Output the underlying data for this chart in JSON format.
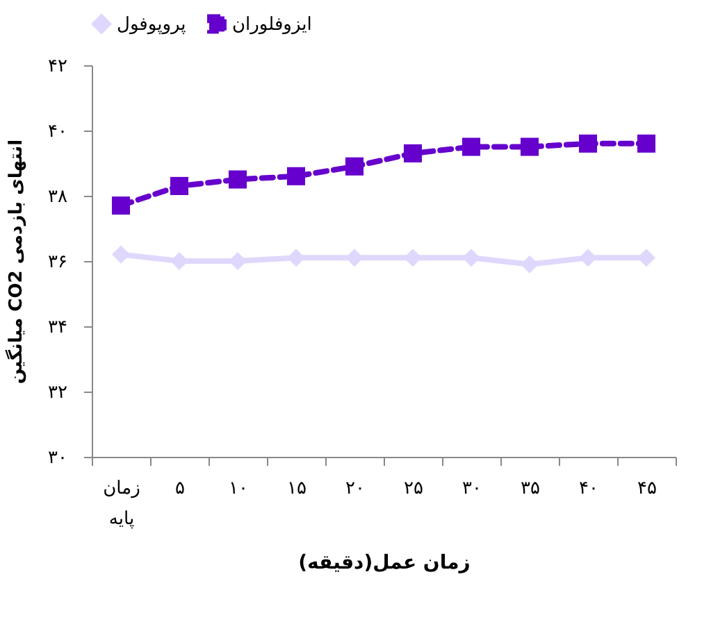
{
  "chart_data": {
    "type": "line",
    "xlabel": "زمان عمل(دقیقه)",
    "ylabel": "میانگین CO2 انتهای بازدمی",
    "categories": [
      "زمان پایه",
      "۵",
      "۱۰",
      "۱۵",
      "۲۰",
      "۲۵",
      "۳۰",
      "۳۵",
      "۴۰",
      "۴۵"
    ],
    "series": [
      {
        "name": "پروپوفول",
        "color": "#e0d8fc",
        "marker": "diamond",
        "line_style": "solid",
        "values": [
          36.2,
          36.0,
          36.0,
          36.1,
          36.1,
          36.1,
          36.1,
          35.9,
          36.1,
          36.1
        ]
      },
      {
        "name": "ایزوفلوران",
        "color": "#6600cc",
        "marker": "square",
        "line_style": "dashed",
        "values": [
          37.7,
          38.3,
          38.5,
          38.6,
          38.9,
          39.3,
          39.5,
          39.5,
          39.6,
          39.6
        ]
      }
    ],
    "ylim": [
      30,
      42
    ],
    "yticks": [
      {
        "value": 30,
        "label": "۳۰"
      },
      {
        "value": 32,
        "label": "۳۲"
      },
      {
        "value": 34,
        "label": "۳۴"
      },
      {
        "value": 36,
        "label": "۳۶"
      },
      {
        "value": 38,
        "label": "۳۸"
      },
      {
        "value": 40,
        "label": "۴۰"
      },
      {
        "value": 42,
        "label": "۴۲"
      }
    ],
    "grid": false,
    "legend": "top"
  }
}
